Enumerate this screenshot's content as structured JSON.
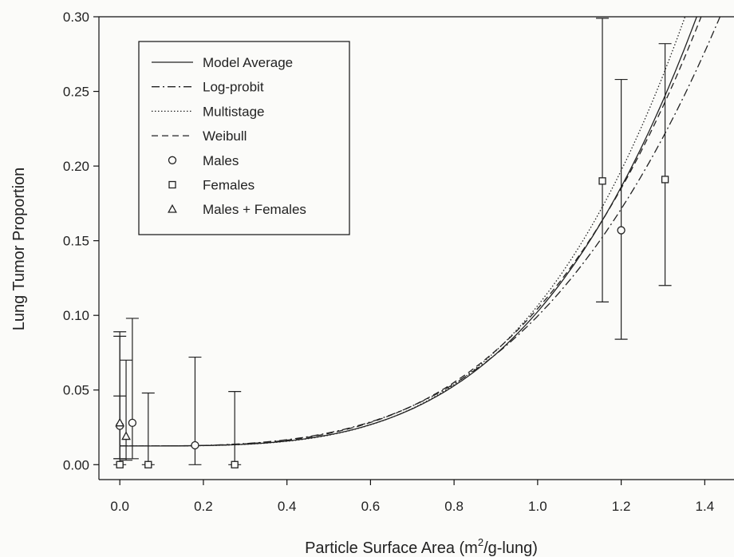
{
  "chart_data": {
    "type": "scatter",
    "title": "",
    "xlabel_base": "Particle Surface Area (m",
    "xlabel_sup": "2",
    "xlabel_rest": "/g-lung)",
    "ylabel": "Lung Tumor Proportion",
    "xlim": [
      -0.05,
      1.47
    ],
    "ylim": [
      -0.01,
      0.3
    ],
    "x_ticks": [
      0.0,
      0.2,
      0.4,
      0.6,
      0.8,
      1.0,
      1.2,
      1.4
    ],
    "x_tick_labels": [
      "0.0",
      "0.2",
      "0.4",
      "0.6",
      "0.8",
      "1.0",
      "1.2",
      "1.4"
    ],
    "y_ticks": [
      0.0,
      0.05,
      0.1,
      0.15,
      0.2,
      0.25,
      0.3
    ],
    "y_tick_labels": [
      "0.00",
      "0.05",
      "0.10",
      "0.15",
      "0.20",
      "0.25",
      "0.30"
    ],
    "legend_position": "top-left",
    "grid": false,
    "line_series": [
      {
        "name": "Model Average",
        "style": "solid",
        "background": 0.0125,
        "coef": 0.09,
        "power": 3.6
      },
      {
        "name": "Log-probit",
        "style": "dashdot",
        "background": 0.0125,
        "coef": 0.087,
        "power": 3.3
      },
      {
        "name": "Multistage",
        "style": "dotted",
        "background": 0.0125,
        "coef": 0.094,
        "power": 3.7
      },
      {
        "name": "Weibull",
        "style": "dashed",
        "background": 0.0125,
        "coef": 0.092,
        "power": 3.45
      }
    ],
    "point_series": [
      {
        "name": "Males",
        "marker": "circle",
        "points": [
          {
            "x": 0.0,
            "y": 0.026,
            "lo": 0.004,
            "hi": 0.086
          },
          {
            "x": 0.03,
            "y": 0.028,
            "lo": 0.004,
            "hi": 0.098
          },
          {
            "x": 0.18,
            "y": 0.013,
            "lo": 0.0,
            "hi": 0.072
          },
          {
            "x": 1.2,
            "y": 0.157,
            "lo": 0.084,
            "hi": 0.258
          }
        ]
      },
      {
        "name": "Females",
        "marker": "square",
        "points": [
          {
            "x": 0.0,
            "y": 0.0,
            "lo": 0.0,
            "hi": 0.046
          },
          {
            "x": 0.068,
            "y": 0.0,
            "lo": 0.0,
            "hi": 0.048
          },
          {
            "x": 0.275,
            "y": 0.0,
            "lo": 0.0,
            "hi": 0.049
          },
          {
            "x": 1.155,
            "y": 0.19,
            "lo": 0.109,
            "hi": 0.299
          },
          {
            "x": 1.305,
            "y": 0.191,
            "lo": 0.12,
            "hi": 0.282
          }
        ]
      },
      {
        "name": "Males + Females",
        "marker": "triangle",
        "points": [
          {
            "x": 0.0,
            "y": 0.028,
            "lo": 0.004,
            "hi": 0.089
          },
          {
            "x": 0.015,
            "y": 0.019,
            "lo": 0.003,
            "hi": 0.07
          }
        ]
      }
    ]
  }
}
